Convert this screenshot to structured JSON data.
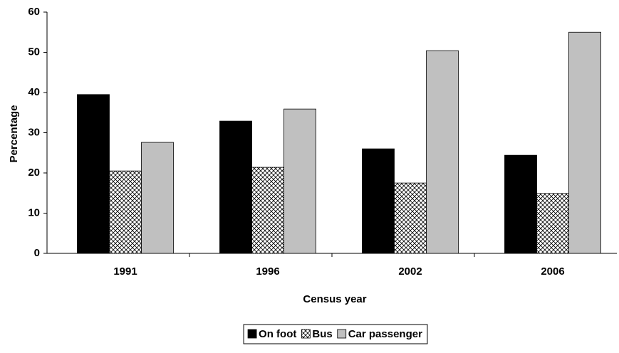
{
  "chart_data": {
    "type": "bar",
    "x_label": "Census year",
    "y_label": "Percentage",
    "categories": [
      "1991",
      "1996",
      "2002",
      "2006"
    ],
    "series": [
      {
        "name": "On foot",
        "color": "#000000",
        "values": [
          39.5,
          32.9,
          26.0,
          24.4
        ]
      },
      {
        "name": "Bus",
        "color": "pattern",
        "values": [
          20.5,
          21.4,
          17.5,
          14.9
        ]
      },
      {
        "name": "Car passenger",
        "color": "#c0c0c0",
        "values": [
          27.6,
          35.9,
          50.4,
          55.0
        ]
      }
    ],
    "ylim": [
      0,
      60
    ],
    "yticks": [
      0,
      10,
      20,
      30,
      40,
      50,
      60
    ],
    "grid": false,
    "legend": "bottom"
  }
}
